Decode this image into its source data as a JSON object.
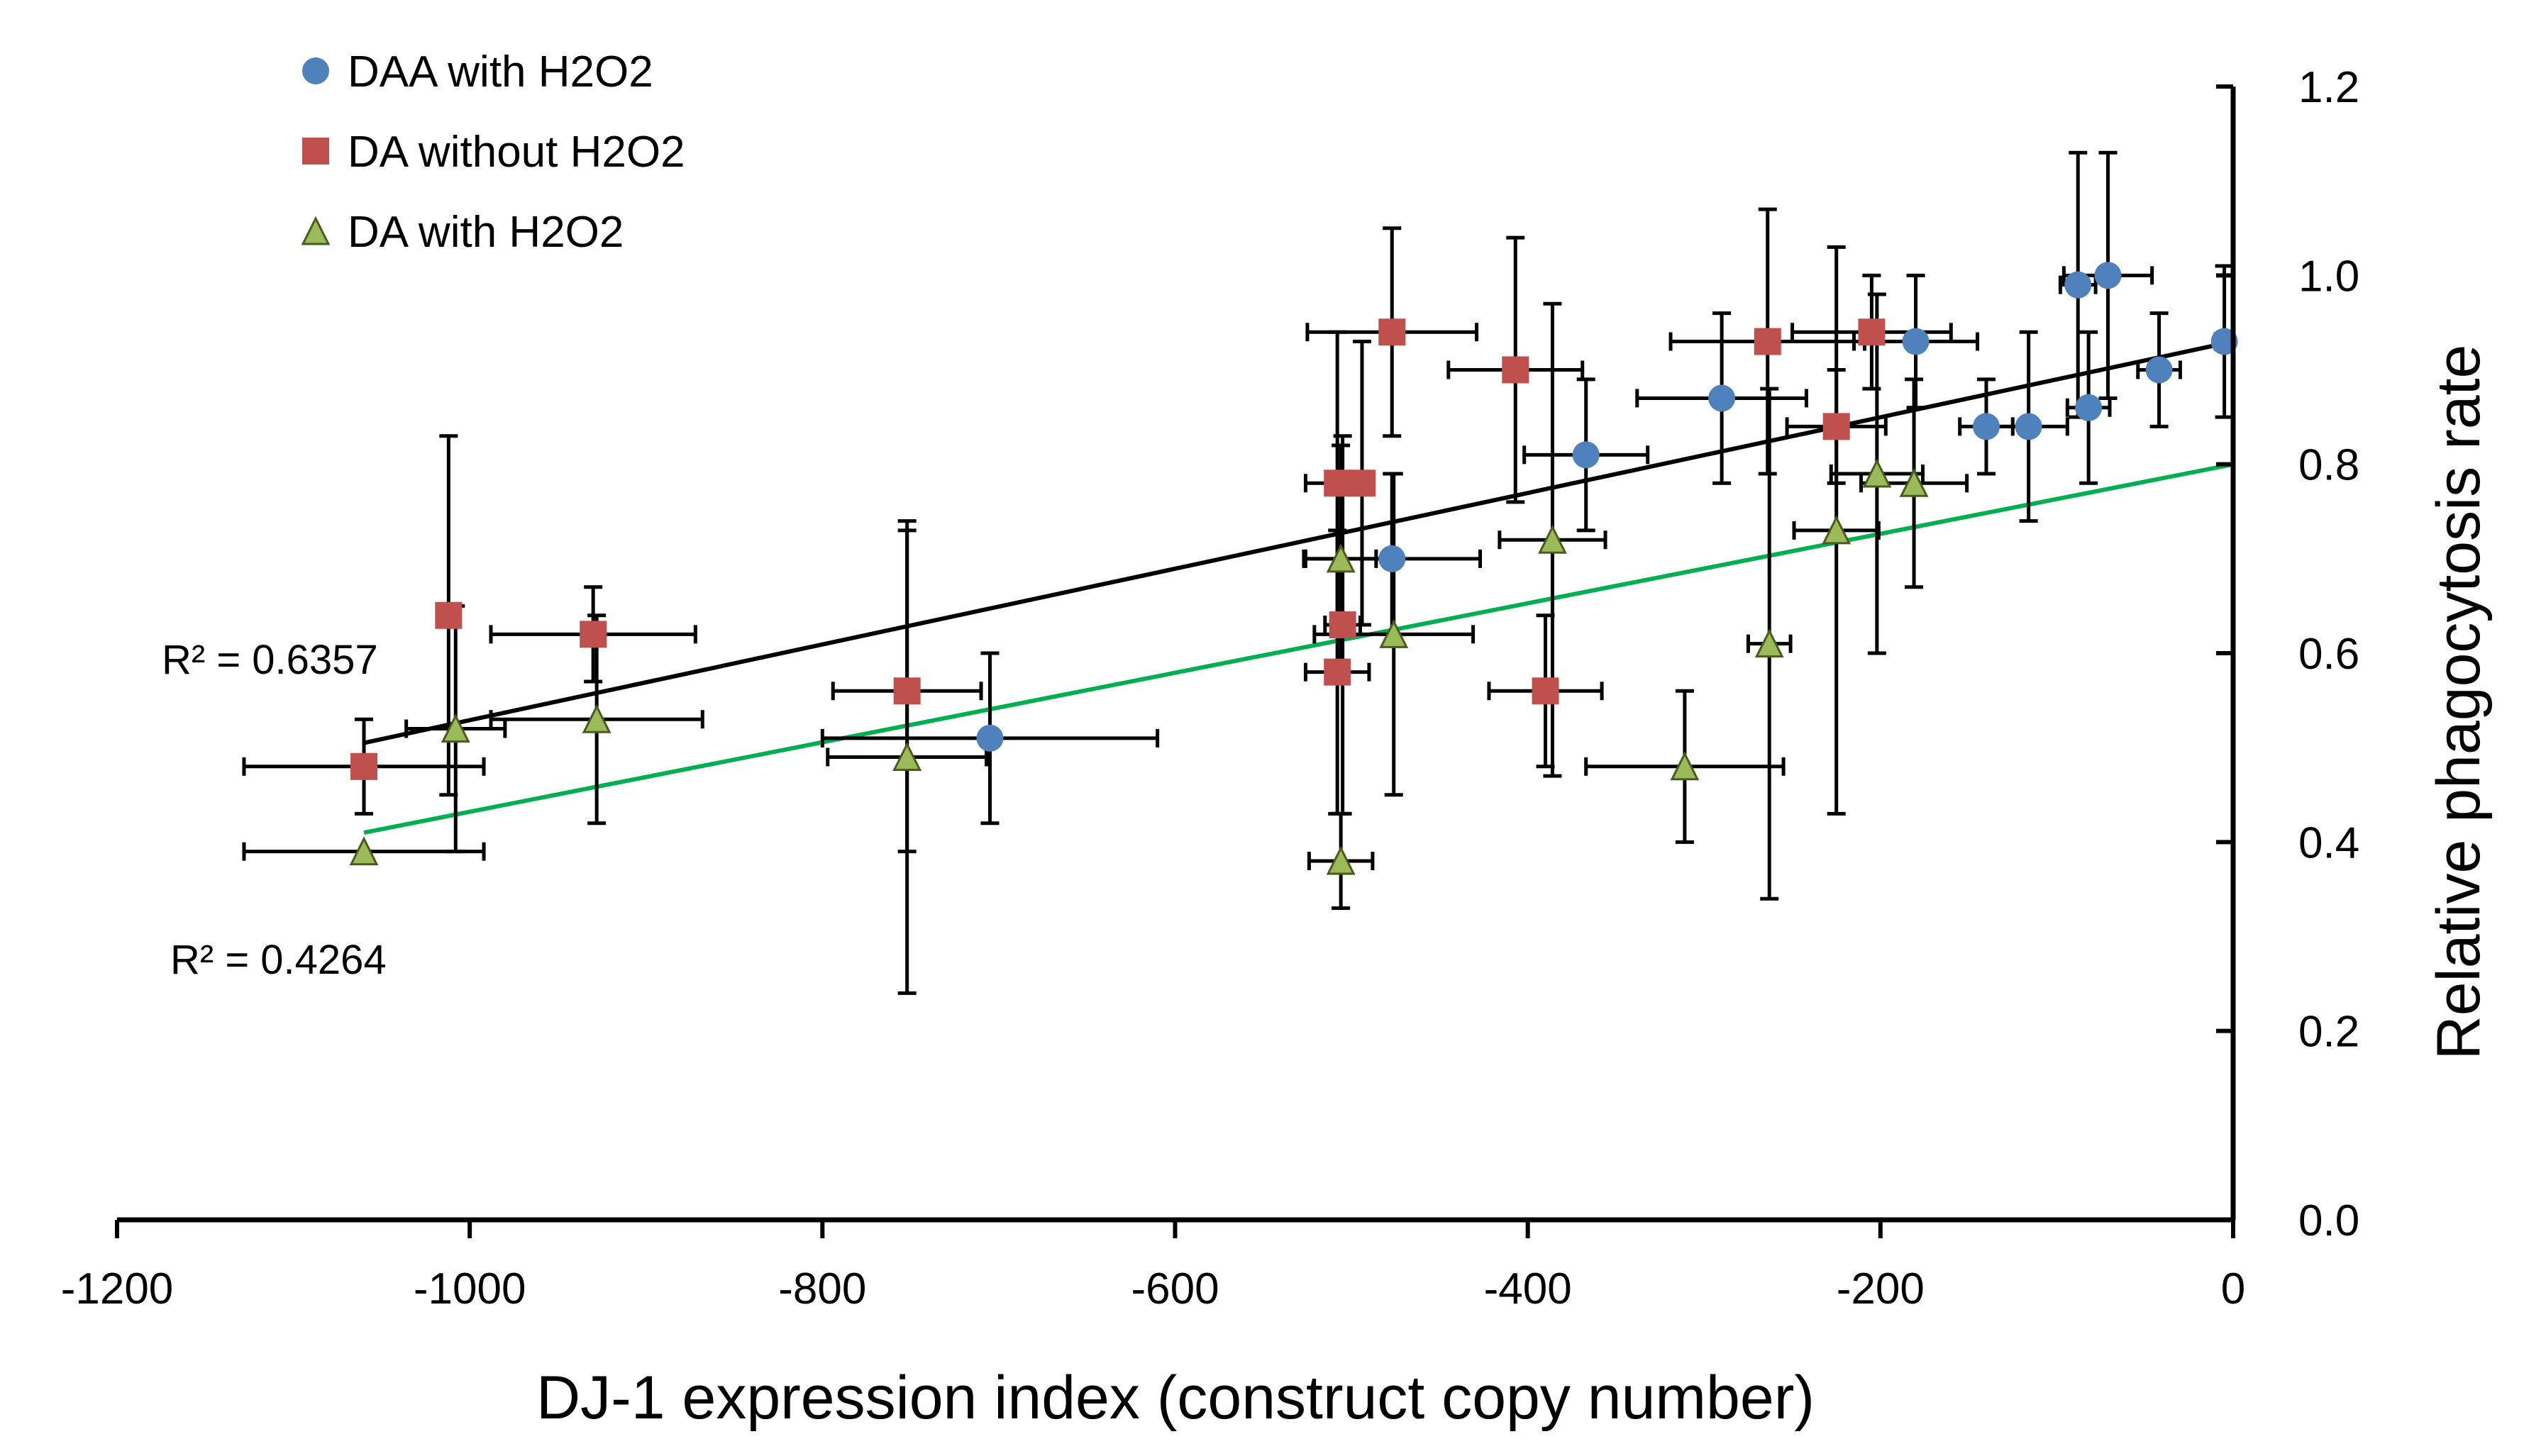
{
  "chart_data": {
    "type": "scatter",
    "xlabel": "DJ-1 expression index (construct copy number)",
    "ylabel": "Relative phagocytosis rate",
    "xlim": [
      -1200,
      0
    ],
    "ylim": [
      0.0,
      1.2
    ],
    "x_ticks": [
      "-1200",
      "-1000",
      "-800",
      "-600",
      "-400",
      "-200",
      "0"
    ],
    "y_ticks": [
      "0.0",
      "0.2",
      "0.4",
      "0.6",
      "0.8",
      "1.0",
      "1.2"
    ],
    "legend_position": "top-left",
    "grid": false,
    "series": [
      {
        "name": "DAA with H2O2",
        "marker": "circle",
        "color": "#4f81bd",
        "points": [
          {
            "x": -705,
            "y": 0.51,
            "xerr": 95,
            "yerr": 0.09
          },
          {
            "x": -477,
            "y": 0.7,
            "xerr": 50,
            "yerr": 0.09
          },
          {
            "x": -367,
            "y": 0.81,
            "xerr": 35,
            "yerr": 0.08
          },
          {
            "x": -290,
            "y": 0.87,
            "xerr": 48,
            "yerr": 0.09
          },
          {
            "x": -180,
            "y": 0.93,
            "xerr": 35,
            "yerr": 0.07
          },
          {
            "x": -140,
            "y": 0.84,
            "xerr": 15,
            "yerr": 0.05
          },
          {
            "x": -116,
            "y": 0.84,
            "xerr": 22,
            "yerr": 0.1
          },
          {
            "x": -88,
            "y": 0.99,
            "xerr": 10,
            "yerr": 0.14
          },
          {
            "x": -82,
            "y": 0.86,
            "xerr": 12,
            "yerr": 0.08
          },
          {
            "x": -71,
            "y": 1.0,
            "xerr": 25,
            "yerr": 0.13
          },
          {
            "x": -42,
            "y": 0.9,
            "xerr": 12,
            "yerr": 0.06
          },
          {
            "x": -5,
            "y": 0.93,
            "xerr": 5,
            "yerr": 0.08
          }
        ]
      },
      {
        "name": "DA without H2O2",
        "marker": "square",
        "color": "#c0504d",
        "points": [
          {
            "x": -1060,
            "y": 0.48,
            "xerr": 68,
            "yerr": 0.05
          },
          {
            "x": -1012,
            "y": 0.64,
            "xerr": 5,
            "yerr": 0.19
          },
          {
            "x": -930,
            "y": 0.62,
            "xerr": 58,
            "yerr": 0.05
          },
          {
            "x": -752,
            "y": 0.56,
            "xerr": 42,
            "yerr": 0.17
          },
          {
            "x": -508,
            "y": 0.78,
            "xerr": 18,
            "yerr": 0.16
          },
          {
            "x": -505,
            "y": 0.63,
            "xerr": 10,
            "yerr": 0.2
          },
          {
            "x": -508,
            "y": 0.58,
            "xerr": 18,
            "yerr": 0.15
          },
          {
            "x": -494,
            "y": 0.78,
            "xerr": 5,
            "yerr": 0.15
          },
          {
            "x": -477,
            "y": 0.94,
            "xerr": 48,
            "yerr": 0.11
          },
          {
            "x": -407,
            "y": 0.9,
            "xerr": 38,
            "yerr": 0.14
          },
          {
            "x": -390,
            "y": 0.56,
            "xerr": 32,
            "yerr": 0.08
          },
          {
            "x": -264,
            "y": 0.93,
            "xerr": 55,
            "yerr": 0.14
          },
          {
            "x": -225,
            "y": 0.84,
            "xerr": 28,
            "yerr": 0.06
          },
          {
            "x": -205,
            "y": 0.94,
            "xerr": 45,
            "yerr": 0.06
          }
        ]
      },
      {
        "name": "DA with H2O2",
        "marker": "triangle",
        "color": "#9bbb59",
        "points": [
          {
            "x": -1060,
            "y": 0.39,
            "xerr": 68,
            "yerr": 0.0
          },
          {
            "x": -1008,
            "y": 0.52,
            "xerr": 28,
            "yerr": 0.13
          },
          {
            "x": -928,
            "y": 0.53,
            "xerr": 60,
            "yerr": 0.11
          },
          {
            "x": -752,
            "y": 0.49,
            "xerr": 45,
            "yerr": 0.25
          },
          {
            "x": -506,
            "y": 0.7,
            "xerr": 20,
            "yerr": 0.12
          },
          {
            "x": -506,
            "y": 0.38,
            "xerr": 18,
            "yerr": 0.05
          },
          {
            "x": -476,
            "y": 0.62,
            "xerr": 45,
            "yerr": 0.17
          },
          {
            "x": -386,
            "y": 0.72,
            "xerr": 30,
            "yerr": 0.25
          },
          {
            "x": -311,
            "y": 0.48,
            "xerr": 56,
            "yerr": 0.08
          },
          {
            "x": -263,
            "y": 0.61,
            "xerr": 12,
            "yerr": 0.27
          },
          {
            "x": -225,
            "y": 0.73,
            "xerr": 24,
            "yerr": 0.3
          },
          {
            "x": -202,
            "y": 0.79,
            "xerr": 26,
            "yerr": 0.19
          },
          {
            "x": -181,
            "y": 0.78,
            "xerr": 30,
            "yerr": 0.11
          }
        ]
      }
    ],
    "trendlines": [
      {
        "series": "DAA with H2O2",
        "color": "#000000",
        "x0": -1060,
        "y0": 0.505,
        "x1": 0,
        "y1": 0.93,
        "r2": "R² = 0.6357"
      },
      {
        "series": "DA with H2O2",
        "color": "#00b050",
        "x0": -1060,
        "y0": 0.41,
        "x1": 0,
        "y1": 0.8,
        "r2": "R² = 0.4264"
      }
    ]
  }
}
